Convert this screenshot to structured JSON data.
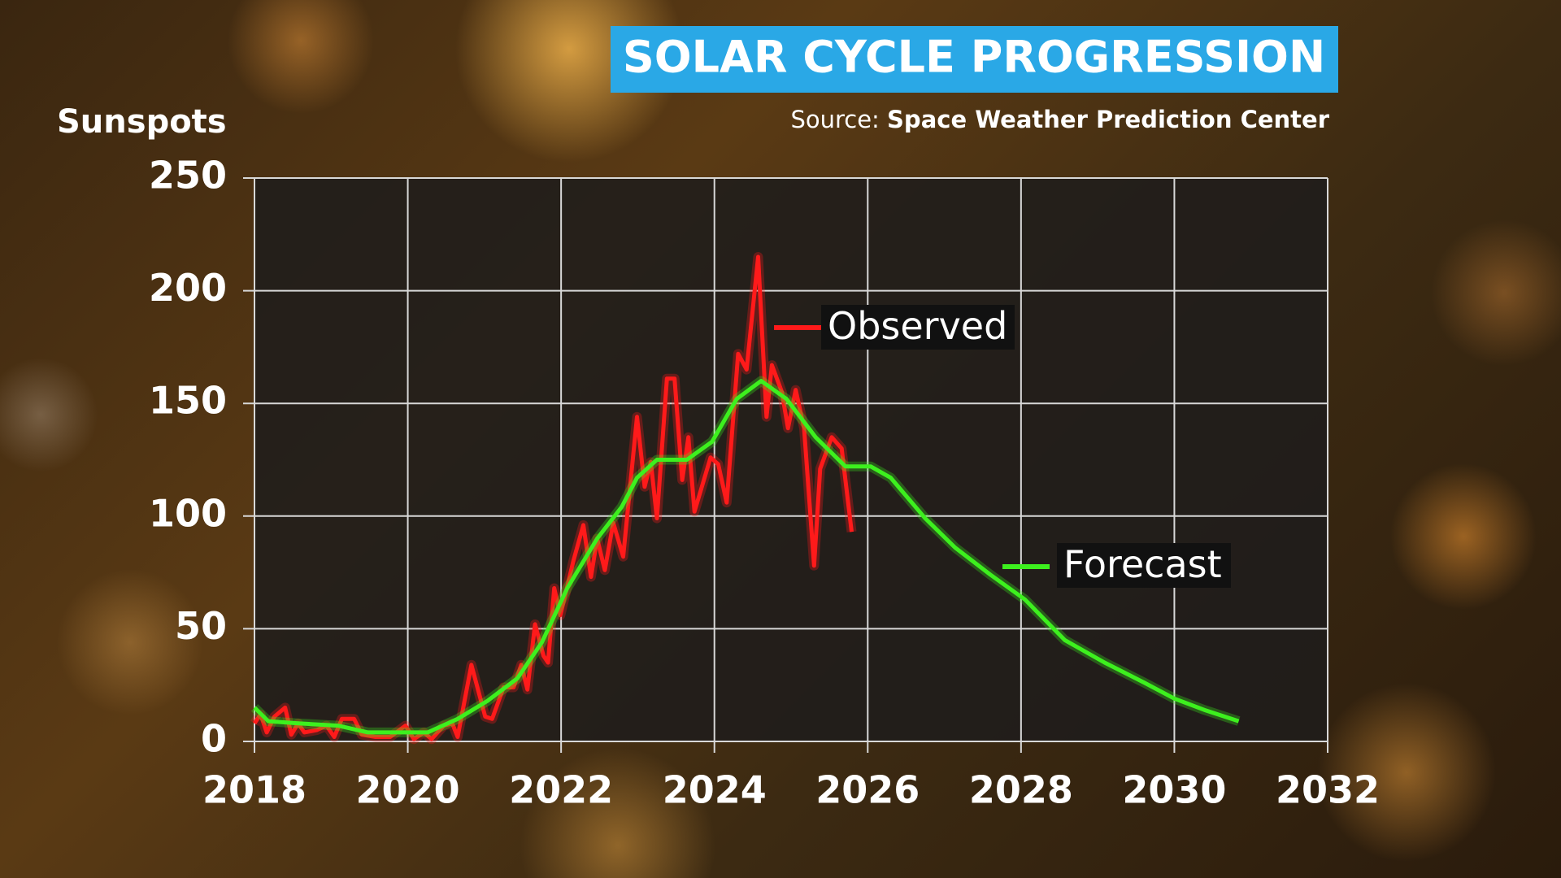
{
  "chart_data": {
    "type": "line",
    "title": "SOLAR CYCLE PROGRESSION",
    "source_label": "Source:",
    "source": "Space Weather Prediction Center",
    "y_label": "Sunspots",
    "xlim": [
      2018,
      2032
    ],
    "xticks": [
      2018,
      2020,
      2022,
      2024,
      2026,
      2028,
      2030,
      2032
    ],
    "ylim": [
      0,
      250
    ],
    "yticks": [
      0,
      50,
      100,
      150,
      200,
      250
    ],
    "grid": true,
    "series": [
      {
        "name": "Observed",
        "color": "#ff1a1a",
        "x": [
          2018.0,
          2018.08,
          2018.16,
          2018.26,
          2018.4,
          2018.48,
          2018.57,
          2018.65,
          2018.81,
          2018.94,
          2019.04,
          2019.14,
          2019.3,
          2019.4,
          2019.58,
          2019.77,
          2019.97,
          2020.08,
          2020.21,
          2020.31,
          2020.47,
          2020.58,
          2020.65,
          2020.83,
          2021.01,
          2021.1,
          2021.25,
          2021.38,
          2021.48,
          2021.56,
          2021.66,
          2021.77,
          2021.83,
          2021.91,
          2021.99,
          2022.16,
          2022.29,
          2022.39,
          2022.47,
          2022.57,
          2022.68,
          2022.81,
          2022.99,
          2023.09,
          2023.17,
          2023.25,
          2023.38,
          2023.48,
          2023.58,
          2023.66,
          2023.74,
          2023.95,
          2024.05,
          2024.16,
          2024.31,
          2024.42,
          2024.57,
          2024.68,
          2024.75,
          2024.88,
          2024.96,
          2025.06,
          2025.17,
          2025.3,
          2025.38,
          2025.53,
          2025.66,
          2025.79
        ],
        "values": [
          8,
          12,
          4,
          11,
          15,
          3,
          8,
          4,
          5,
          7,
          2,
          10,
          10,
          3,
          2,
          2,
          7,
          1,
          4,
          1,
          7,
          8,
          2,
          34,
          11,
          10,
          24,
          24,
          34,
          23,
          52,
          38,
          35,
          68,
          56,
          80,
          96,
          73,
          90,
          76,
          97,
          82,
          144,
          113,
          124,
          99,
          161,
          161,
          116,
          135,
          102,
          126,
          123,
          106,
          172,
          165,
          215,
          144,
          167,
          155,
          139,
          156,
          139,
          78,
          121,
          135,
          130,
          93
        ]
      },
      {
        "name": "Forecast",
        "color": "#3df01e",
        "x": [
          2018.0,
          2018.18,
          2018.57,
          2019.09,
          2019.48,
          2019.87,
          2020.26,
          2020.65,
          2021.04,
          2021.43,
          2021.75,
          2022.08,
          2022.47,
          2022.79,
          2022.99,
          2023.25,
          2023.64,
          2023.97,
          2024.29,
          2024.61,
          2024.94,
          2025.32,
          2025.71,
          2026.04,
          2026.3,
          2026.75,
          2027.14,
          2027.6,
          2028.05,
          2028.57,
          2029.09,
          2029.61,
          2030.0,
          2030.39,
          2030.84
        ],
        "values": [
          15,
          9,
          8,
          7,
          4,
          4,
          4,
          10,
          18,
          28,
          44,
          68,
          90,
          104,
          117,
          125,
          125,
          133,
          152,
          160,
          152,
          135,
          122,
          122,
          117,
          99,
          86,
          74,
          63,
          45,
          35,
          26,
          19,
          14,
          9
        ]
      }
    ]
  }
}
